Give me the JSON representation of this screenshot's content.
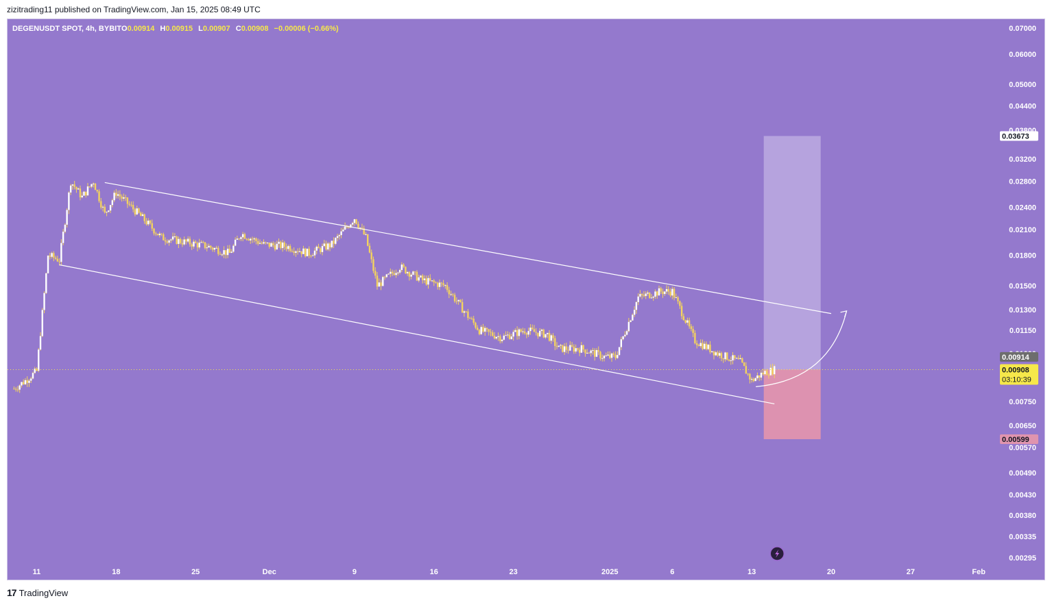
{
  "header": {
    "published": "zizitrading11 published on TradingView.com, Jan 15, 2025 08:49 UTC",
    "symbol": "DEGENUSDT SPOT, 4h, BYBIT",
    "ohlc": [
      {
        "k": "O",
        "v": "0.00914"
      },
      {
        "k": "H",
        "v": "0.00915"
      },
      {
        "k": "L",
        "v": "0.00907"
      },
      {
        "k": "C",
        "v": "0.00908"
      }
    ],
    "change": "−0.00006 (−0.66%)"
  },
  "footer": {
    "logo": "17",
    "brand": "TradingView"
  },
  "colors": {
    "background": "#9479cd",
    "candle": "#f4d35e",
    "channel": "#ffffff",
    "target_zone": "#b7a5de",
    "stop_zone": "#e094ae",
    "price_tag": "#f6e84a"
  },
  "chart_data": {
    "type": "line",
    "scale": "log",
    "yticks": [
      "0.07000",
      "0.06000",
      "0.05000",
      "0.04400",
      "0.03800",
      "0.03200",
      "0.02800",
      "0.02400",
      "0.02100",
      "0.01800",
      "0.01500",
      "0.01300",
      "0.01150",
      "0.01000",
      "0.00750",
      "0.00650",
      "0.00570",
      "0.00490",
      "0.00430",
      "0.00380",
      "0.00335",
      "0.00295"
    ],
    "xticks": [
      "11",
      "18",
      "25",
      "Dec",
      "9",
      "16",
      "23",
      "2025",
      "6",
      "13",
      "20",
      "27",
      "Feb"
    ],
    "series": [
      {
        "values": [
          {
            "x": "Nov 9",
            "y": 0.0081
          },
          {
            "x": "Nov 10",
            "y": 0.0085
          },
          {
            "x": "Nov 11",
            "y": 0.009
          },
          {
            "x": "Nov 12",
            "y": 0.018
          },
          {
            "x": "Nov 13",
            "y": 0.0175
          },
          {
            "x": "Nov 14",
            "y": 0.028
          },
          {
            "x": "Nov 15",
            "y": 0.0255
          },
          {
            "x": "Nov 16",
            "y": 0.028
          },
          {
            "x": "Nov 17",
            "y": 0.023
          },
          {
            "x": "Nov 18",
            "y": 0.0262
          },
          {
            "x": "Nov 20",
            "y": 0.023
          },
          {
            "x": "Nov 22",
            "y": 0.02
          },
          {
            "x": "Nov 24",
            "y": 0.0195
          },
          {
            "x": "Nov 26",
            "y": 0.019
          },
          {
            "x": "Nov 28",
            "y": 0.0182
          },
          {
            "x": "Nov 29",
            "y": 0.0205
          },
          {
            "x": "Dec 1",
            "y": 0.0192
          },
          {
            "x": "Dec 3",
            "y": 0.019
          },
          {
            "x": "Dec 5",
            "y": 0.0182
          },
          {
            "x": "Dec 7",
            "y": 0.0192
          },
          {
            "x": "Dec 9",
            "y": 0.0225
          },
          {
            "x": "Dec 10",
            "y": 0.02
          },
          {
            "x": "Dec 11",
            "y": 0.015
          },
          {
            "x": "Dec 13",
            "y": 0.0168
          },
          {
            "x": "Dec 15",
            "y": 0.0155
          },
          {
            "x": "Dec 17",
            "y": 0.015
          },
          {
            "x": "Dec 19",
            "y": 0.0125
          },
          {
            "x": "Dec 20",
            "y": 0.0115
          },
          {
            "x": "Dec 22",
            "y": 0.011
          },
          {
            "x": "Dec 24",
            "y": 0.0115
          },
          {
            "x": "Dec 26",
            "y": 0.0112
          },
          {
            "x": "Dec 27",
            "y": 0.0103
          },
          {
            "x": "Dec 29",
            "y": 0.0103
          },
          {
            "x": "Dec 31",
            "y": 0.0098
          },
          {
            "x": "Jan 1",
            "y": 0.0098
          },
          {
            "x": "Jan 3",
            "y": 0.014
          },
          {
            "x": "Jan 5",
            "y": 0.0145
          },
          {
            "x": "Jan 6",
            "y": 0.0145
          },
          {
            "x": "Jan 7",
            "y": 0.0125
          },
          {
            "x": "Jan 8",
            "y": 0.0108
          },
          {
            "x": "Jan 10",
            "y": 0.01
          },
          {
            "x": "Jan 12",
            "y": 0.0095
          },
          {
            "x": "Jan 13",
            "y": 0.0085
          },
          {
            "x": "Jan 14",
            "y": 0.0089
          },
          {
            "x": "Jan 15",
            "y": 0.00908
          }
        ]
      }
    ],
    "channel": {
      "upper": [
        {
          "x": "Nov 17",
          "y": 0.0278
        },
        {
          "x": "Jan 20",
          "y": 0.0127
        }
      ],
      "lower": [
        {
          "x": "Nov 13",
          "y": 0.017
        },
        {
          "x": "Jan 15",
          "y": 0.0074
        }
      ]
    },
    "position": {
      "entry": 0.00908,
      "target": 0.03673,
      "stop": 0.00599
    },
    "price_tags": {
      "target": "0.03673",
      "high": "0.00914",
      "last": "0.00908",
      "countdown": "03:10:39",
      "stop": "0.00599"
    }
  }
}
